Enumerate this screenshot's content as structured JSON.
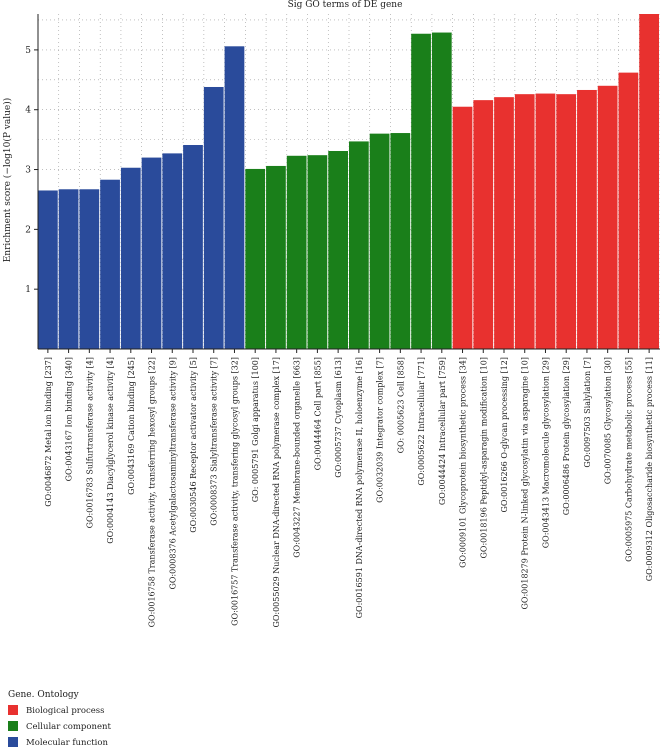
{
  "chart_data": {
    "type": "bar",
    "title": "Sig GO terms of DE gene",
    "ylabel": "Enrichment score (−log10(P value))",
    "xlabel": "",
    "ylim": [
      0,
      5.6
    ],
    "yticks": [
      1,
      2,
      3,
      4,
      5
    ],
    "grid": true,
    "legend": {
      "title": "Gene. Ontology",
      "position": "bottom-left",
      "entries": [
        {
          "label": "Biological process",
          "color": "#e8312f"
        },
        {
          "label": "Cellular component",
          "color": "#1a7f1a"
        },
        {
          "label": "Molecular function",
          "color": "#2a4b9b"
        }
      ]
    },
    "categories": [
      {
        "label": "GO:0046872 Metal ion binding [237]",
        "value": 2.65,
        "group": "Molecular function"
      },
      {
        "label": "GO:0043167 Ion binding [340]",
        "value": 2.67,
        "group": "Molecular function"
      },
      {
        "label": "GO:0016783 Sulfurtransferase activity [4]",
        "value": 2.67,
        "group": "Molecular function"
      },
      {
        "label": "GO:0004143 Diacylglycerol kinase activity [4]",
        "value": 2.83,
        "group": "Molecular function"
      },
      {
        "label": "GO:0043169 Cation binding [245]",
        "value": 3.03,
        "group": "Molecular function"
      },
      {
        "label": "GO:0016758 Transferase activity, transferring hexosyl groups [22]",
        "value": 3.2,
        "group": "Molecular function"
      },
      {
        "label": "GO:0008376 Acetylgalactosaminyltransferase activity [9]",
        "value": 3.27,
        "group": "Molecular function"
      },
      {
        "label": "GO:0030546 Receptor activator activity [5]",
        "value": 3.41,
        "group": "Molecular function"
      },
      {
        "label": "GO:0008373 Sialyltransferase activity [7]",
        "value": 4.38,
        "group": "Molecular function"
      },
      {
        "label": "GO:0016757 Transferase activity, transfering glycosyl groups [32]",
        "value": 5.06,
        "group": "Molecular function"
      },
      {
        "label": "GO: 0005791 Golgi apparatus [100]",
        "value": 3.01,
        "group": "Cellular component"
      },
      {
        "label": "GO:0055029 Nuclear DNA-directed RNA polymerase complex [17]",
        "value": 3.06,
        "group": "Cellular component"
      },
      {
        "label": "GO:0043227 Membrane-bounded organelle [663]",
        "value": 3.23,
        "group": "Cellular component"
      },
      {
        "label": "GO:0044464 Cell part [855]",
        "value": 3.24,
        "group": "Cellular component"
      },
      {
        "label": "GO:0005737 Cytoplasm [613]",
        "value": 3.31,
        "group": "Cellular component"
      },
      {
        "label": "GO:0016591 DNA-directed RNA polymerase II, holoenzyme [16]",
        "value": 3.47,
        "group": "Cellular component"
      },
      {
        "label": "GO:0032039 Integrator complex [7]",
        "value": 3.6,
        "group": "Cellular component"
      },
      {
        "label": "GO: 0005623 Cell [858]",
        "value": 3.61,
        "group": "Cellular component"
      },
      {
        "label": "GO:0005622 Intracellular [771]",
        "value": 5.27,
        "group": "Cellular component"
      },
      {
        "label": "GO:0044424 Intracellular part [759]",
        "value": 5.29,
        "group": "Cellular component"
      },
      {
        "label": "GO:0009101 Glycoprotein biosynthetic process [34]",
        "value": 4.05,
        "group": "Biological process"
      },
      {
        "label": "GO:0018196 Peptidyl-asparagin modification [10]",
        "value": 4.16,
        "group": "Biological process"
      },
      {
        "label": "GO:0016266 O-glycan processing [12]",
        "value": 4.21,
        "group": "Biological process"
      },
      {
        "label": "GO:0018279 Protein N-linked glycosylatin via asparagine [10]",
        "value": 4.26,
        "group": "Biological process"
      },
      {
        "label": "GO:0043413 Macromolecule glycosylation [29]",
        "value": 4.27,
        "group": "Biological process"
      },
      {
        "label": "GO:0006486 Protein glycosylation [29]",
        "value": 4.26,
        "group": "Biological process"
      },
      {
        "label": "GO:0097503 Sialylation [7]",
        "value": 4.33,
        "group": "Biological process"
      },
      {
        "label": "GO:0070085 Glycosylation [30]",
        "value": 4.4,
        "group": "Biological process"
      },
      {
        "label": "GO:0005975 Carbohydrate metabolic process [55]",
        "value": 4.62,
        "group": "Biological process"
      },
      {
        "label": "GO:0009312 Oligosaccharide biosynthetic process [11]",
        "value": 5.6,
        "group": "Biological process"
      }
    ]
  }
}
